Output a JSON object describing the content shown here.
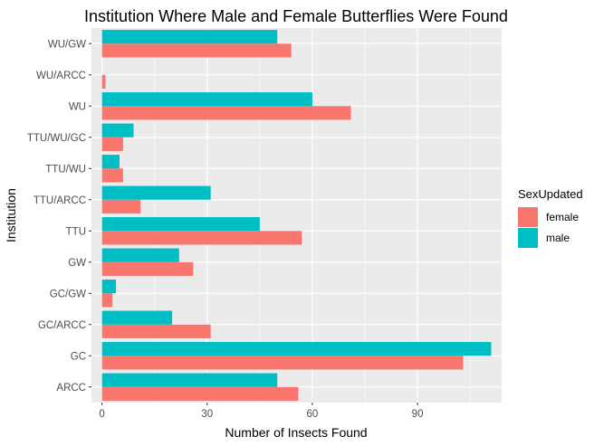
{
  "chart_data": {
    "type": "bar",
    "orientation": "horizontal",
    "title": "Institution Where Male and Female Butterflies Were Found",
    "xlabel": "Number of Insects Found",
    "ylabel": "Institution",
    "xlim": [
      -3,
      114
    ],
    "xticks": [
      0,
      30,
      60,
      90
    ],
    "grid": true,
    "legend_position": "right",
    "categories": [
      "ARCC",
      "GC",
      "GC/ARCC",
      "GC/GW",
      "GW",
      "TTU",
      "TTU/ARCC",
      "TTU/WU",
      "TTU/WU/GC",
      "WU",
      "WU/ARCC",
      "WU/GW"
    ],
    "legend": {
      "title": "SexUpdated"
    },
    "series": [
      {
        "name": "female",
        "color": "#F8766D",
        "values": [
          56,
          103,
          31,
          3,
          26,
          57,
          11,
          6,
          6,
          71,
          1,
          54
        ]
      },
      {
        "name": "male",
        "color": "#00BFC4",
        "values": [
          50,
          111,
          20,
          4,
          22,
          45,
          31,
          5,
          9,
          60,
          0,
          50
        ]
      }
    ]
  }
}
